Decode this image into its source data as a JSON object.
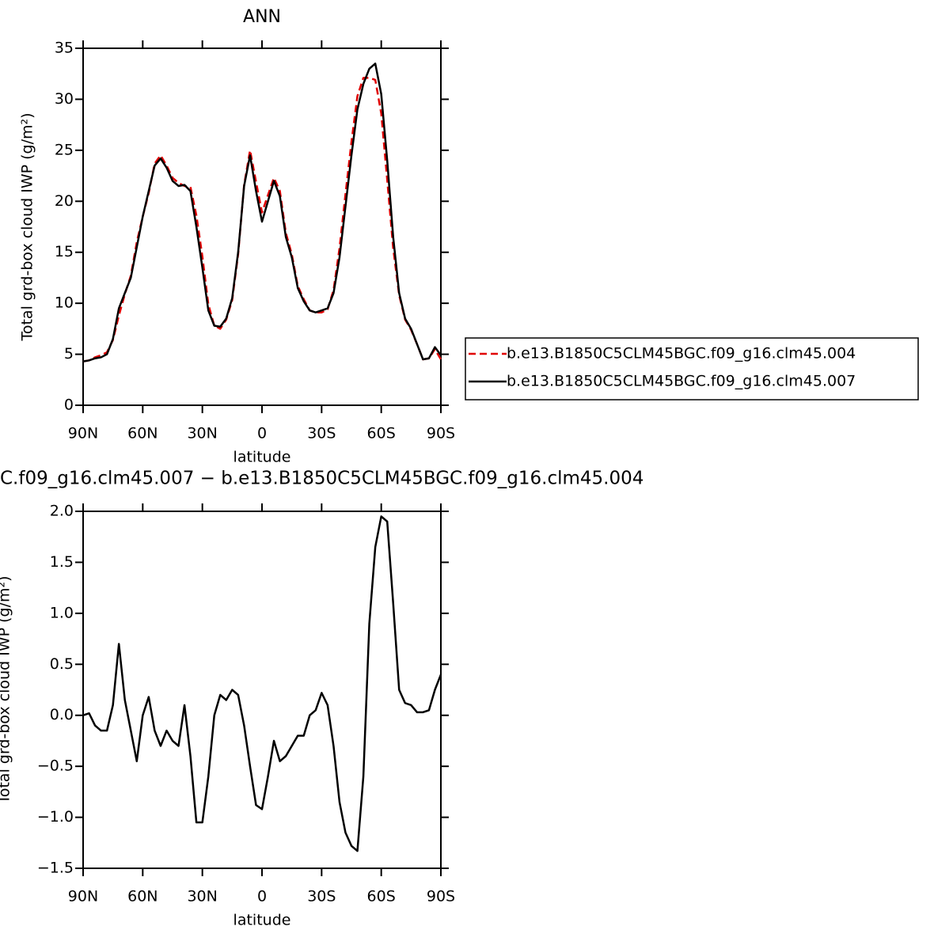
{
  "chart_data": [
    {
      "type": "line",
      "title": "ANN",
      "xlabel": "latitude",
      "ylabel": "Total grd-box cloud IWP (g/m²)",
      "x": [
        90,
        87,
        84,
        81,
        78,
        75,
        72,
        69,
        66,
        63,
        60,
        57,
        54,
        51,
        48,
        45,
        42,
        39,
        36,
        33,
        30,
        27,
        24,
        21,
        18,
        15,
        12,
        9,
        6,
        3,
        0,
        -3,
        -6,
        -9,
        -12,
        -15,
        -18,
        -21,
        -24,
        -27,
        -30,
        -33,
        -36,
        -39,
        -42,
        -45,
        -48,
        -51,
        -54,
        -57,
        -60,
        -63,
        -66,
        -69,
        -72,
        -75,
        -78,
        -81,
        -84,
        -87,
        -90
      ],
      "series": [
        {
          "name": "b.e13.B1850C5CLM45BGC.f09_g16.clm45.004",
          "color": "#e00000",
          "dash": true,
          "values": [
            4.3,
            4.4,
            4.7,
            4.9,
            5.2,
            6.4,
            8.8,
            10.9,
            12.7,
            16.0,
            18.5,
            20.8,
            23.7,
            24.5,
            23.5,
            22.3,
            21.8,
            21.5,
            21.4,
            18.6,
            14.6,
            9.9,
            7.8,
            7.5,
            8.4,
            10.3,
            14.8,
            21.6,
            25.0,
            21.9,
            18.9,
            20.6,
            22.3,
            21.0,
            16.9,
            14.8,
            11.7,
            10.4,
            9.3,
            9.1,
            9.1,
            9.4,
            11.3,
            15.4,
            20.7,
            25.8,
            30.3,
            32.1,
            32.1,
            31.9,
            28.6,
            22.1,
            15.4,
            10.8,
            8.4,
            7.4,
            6.0,
            4.5,
            4.6,
            5.5,
            4.5
          ]
        },
        {
          "name": "b.e13.B1850C5CLM45BGC.f09_g16.clm45.007",
          "color": "#000000",
          "dash": false,
          "values": [
            4.3,
            4.4,
            4.6,
            4.7,
            5.0,
            6.5,
            9.5,
            11.0,
            12.5,
            15.5,
            18.5,
            21.0,
            23.5,
            24.2,
            23.3,
            22.0,
            21.5,
            21.6,
            21.0,
            17.5,
            13.5,
            9.3,
            7.8,
            7.7,
            8.5,
            10.5,
            15.0,
            21.5,
            24.5,
            21.0,
            18.0,
            20.0,
            22.0,
            20.5,
            16.5,
            14.5,
            11.5,
            10.2,
            9.3,
            9.1,
            9.3,
            9.5,
            11.0,
            14.5,
            19.5,
            24.5,
            29.0,
            31.5,
            33.0,
            33.5,
            30.5,
            24.0,
            16.5,
            11.0,
            8.5,
            7.5,
            6.0,
            4.5,
            4.6,
            5.7,
            4.9
          ]
        }
      ],
      "xlim": [
        90,
        -90
      ],
      "xticks": [
        {
          "value": 90,
          "label": "90N"
        },
        {
          "value": 60,
          "label": "60N"
        },
        {
          "value": 30,
          "label": "30N"
        },
        0,
        {
          "value": -30,
          "label": "30S"
        },
        {
          "value": -60,
          "label": "60S"
        },
        {
          "value": -90,
          "label": "90S"
        }
      ],
      "ylim": [
        0,
        35
      ],
      "yticks": [
        0,
        5,
        10,
        15,
        20,
        25,
        30,
        35
      ]
    },
    {
      "type": "line",
      "title": "C.f09_g16.clm45.007 − b.e13.B1850C5CLM45BGC.f09_g16.clm45.004",
      "xlabel": "latitude",
      "ylabel": "Total grd-box cloud IWP (g/m²)",
      "x": [
        90,
        87,
        84,
        81,
        78,
        75,
        72,
        69,
        66,
        63,
        60,
        57,
        54,
        51,
        48,
        45,
        42,
        39,
        36,
        33,
        30,
        27,
        24,
        21,
        18,
        15,
        12,
        9,
        6,
        3,
        0,
        -3,
        -6,
        -9,
        -12,
        -15,
        -18,
        -21,
        -24,
        -27,
        -30,
        -33,
        -36,
        -39,
        -42,
        -45,
        -48,
        -51,
        -54,
        -57,
        -60,
        -63,
        -66,
        -69,
        -72,
        -75,
        -78,
        -81,
        -84,
        -87,
        -90
      ],
      "color": "#000000",
      "values": [
        0.0,
        0.02,
        -0.1,
        -0.15,
        -0.15,
        0.1,
        0.7,
        0.15,
        -0.15,
        -0.45,
        0.0,
        0.18,
        -0.15,
        -0.3,
        -0.15,
        -0.25,
        -0.3,
        0.1,
        -0.4,
        -1.05,
        -1.05,
        -0.6,
        0.0,
        0.2,
        0.15,
        0.25,
        0.2,
        -0.1,
        -0.5,
        -0.88,
        -0.92,
        -0.6,
        -0.25,
        -0.45,
        -0.4,
        -0.3,
        -0.2,
        -0.2,
        0.0,
        0.05,
        0.22,
        0.1,
        -0.3,
        -0.85,
        -1.15,
        -1.28,
        -1.33,
        -0.6,
        0.9,
        1.65,
        1.95,
        1.9,
        1.1,
        0.25,
        0.12,
        0.1,
        0.03,
        0.03,
        0.05,
        0.25,
        0.4
      ],
      "xlim": [
        90,
        -90
      ],
      "xticks": [
        {
          "value": 90,
          "label": "90N"
        },
        {
          "value": 60,
          "label": "60N"
        },
        {
          "value": 30,
          "label": "30N"
        },
        0,
        {
          "value": -30,
          "label": "30S"
        },
        {
          "value": -60,
          "label": "60S"
        },
        {
          "value": -90,
          "label": "90S"
        }
      ],
      "ylim": [
        -1.5,
        2.0
      ],
      "yticks": [
        {
          "value": -1.5,
          "label": "−1.5"
        },
        {
          "value": -1.0,
          "label": "−1.0"
        },
        {
          "value": -0.5,
          "label": "−0.5"
        },
        {
          "value": 0,
          "label": "0.0"
        },
        0.5,
        {
          "value": 1.0,
          "label": "1.0"
        },
        1.5,
        {
          "value": 2.0,
          "label": "2.0"
        }
      ]
    }
  ]
}
